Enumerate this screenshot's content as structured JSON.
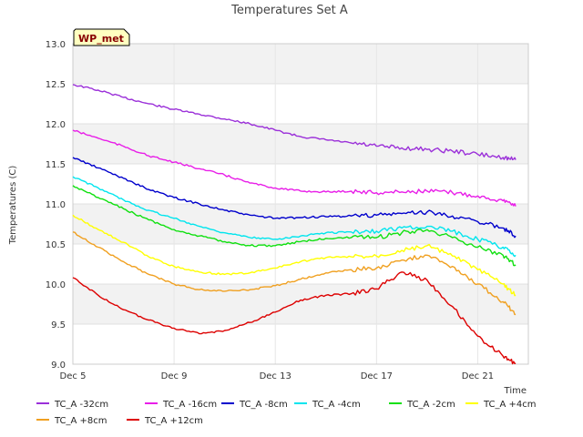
{
  "chart_data": {
    "type": "line",
    "title": "Temperatures Set A",
    "xlabel": "Time",
    "ylabel": "Temperatures (C)",
    "ylim": [
      9.0,
      13.0
    ],
    "xlim": [
      "2023-12-05",
      "2023-12-23"
    ],
    "yticks": [
      "9.0",
      "9.5",
      "10.0",
      "10.5",
      "11.0",
      "11.5",
      "12.0",
      "12.5",
      "13.0"
    ],
    "xticks": [
      {
        "label": "Dec 5",
        "date": "2023-12-05"
      },
      {
        "label": "Dec 9",
        "date": "2023-12-09"
      },
      {
        "label": "Dec 13",
        "date": "2023-12-13"
      },
      {
        "label": "Dec 17",
        "date": "2023-12-17"
      },
      {
        "label": "Dec 21",
        "date": "2023-12-21"
      }
    ],
    "grid": true,
    "legend_placement": "bottom",
    "badge": "WP_met",
    "series": [
      {
        "name": "TC_A -32cm",
        "color": "#9b30d9",
        "x": [
          "2023-12-05",
          "2023-12-06",
          "2023-12-07",
          "2023-12-08",
          "2023-12-09",
          "2023-12-10",
          "2023-12-11",
          "2023-12-12",
          "2023-12-13",
          "2023-12-14",
          "2023-12-15",
          "2023-12-16",
          "2023-12-17",
          "2023-12-18",
          "2023-12-19",
          "2023-12-20",
          "2023-12-21",
          "2023-12-22",
          "2023-12-22.5"
        ],
        "y": [
          12.49,
          12.42,
          12.33,
          12.25,
          12.18,
          12.12,
          12.06,
          12.0,
          11.92,
          11.84,
          11.8,
          11.76,
          11.72,
          11.7,
          11.68,
          11.66,
          11.62,
          11.58,
          11.55
        ]
      },
      {
        "name": "TC_A -16cm",
        "color": "#e81ee8",
        "x": [
          "2023-12-05",
          "2023-12-06",
          "2023-12-07",
          "2023-12-08",
          "2023-12-09",
          "2023-12-10",
          "2023-12-11",
          "2023-12-12",
          "2023-12-13",
          "2023-12-14",
          "2023-12-15",
          "2023-12-16",
          "2023-12-17",
          "2023-12-18",
          "2023-12-19",
          "2023-12-20",
          "2023-12-21",
          "2023-12-22",
          "2023-12-22.5"
        ],
        "y": [
          11.92,
          11.82,
          11.72,
          11.6,
          11.52,
          11.44,
          11.36,
          11.26,
          11.2,
          11.16,
          11.15,
          11.16,
          11.14,
          11.15,
          11.16,
          11.14,
          11.1,
          11.04,
          10.97
        ]
      },
      {
        "name": "TC_A -8cm",
        "color": "#0000cc",
        "x": [
          "2023-12-05",
          "2023-12-06",
          "2023-12-07",
          "2023-12-08",
          "2023-12-09",
          "2023-12-10",
          "2023-12-11",
          "2023-12-12",
          "2023-12-13",
          "2023-12-14",
          "2023-12-15",
          "2023-12-16",
          "2023-12-17",
          "2023-12-18",
          "2023-12-19",
          "2023-12-20",
          "2023-12-21",
          "2023-12-22",
          "2023-12-22.5"
        ],
        "y": [
          11.58,
          11.45,
          11.32,
          11.18,
          11.08,
          11.0,
          10.92,
          10.86,
          10.82,
          10.83,
          10.84,
          10.85,
          10.86,
          10.88,
          10.9,
          10.85,
          10.78,
          10.7,
          10.6
        ]
      },
      {
        "name": "TC_A -4cm",
        "color": "#00e5ee",
        "x": [
          "2023-12-05",
          "2023-12-06",
          "2023-12-07",
          "2023-12-08",
          "2023-12-09",
          "2023-12-10",
          "2023-12-11",
          "2023-12-12",
          "2023-12-13",
          "2023-12-14",
          "2023-12-15",
          "2023-12-16",
          "2023-12-17",
          "2023-12-18",
          "2023-12-19",
          "2023-12-20",
          "2023-12-21",
          "2023-12-22",
          "2023-12-22.5"
        ],
        "y": [
          11.34,
          11.2,
          11.05,
          10.92,
          10.82,
          10.72,
          10.64,
          10.58,
          10.56,
          10.6,
          10.64,
          10.65,
          10.66,
          10.7,
          10.72,
          10.66,
          10.56,
          10.46,
          10.36
        ]
      },
      {
        "name": "TC_A -2cm",
        "color": "#10e010",
        "x": [
          "2023-12-05",
          "2023-12-06",
          "2023-12-07",
          "2023-12-08",
          "2023-12-09",
          "2023-12-10",
          "2023-12-11",
          "2023-12-12",
          "2023-12-13",
          "2023-12-14",
          "2023-12-15",
          "2023-12-16",
          "2023-12-17",
          "2023-12-18",
          "2023-12-19",
          "2023-12-20",
          "2023-12-21",
          "2023-12-22",
          "2023-12-22.5"
        ],
        "y": [
          11.23,
          11.08,
          10.94,
          10.8,
          10.68,
          10.6,
          10.53,
          10.48,
          10.48,
          10.53,
          10.57,
          10.58,
          10.58,
          10.64,
          10.68,
          10.58,
          10.46,
          10.36,
          10.24
        ]
      },
      {
        "name": "TC_A +4cm",
        "color": "#ffff00",
        "x": [
          "2023-12-05",
          "2023-12-06",
          "2023-12-07",
          "2023-12-08",
          "2023-12-09",
          "2023-12-10",
          "2023-12-11",
          "2023-12-12",
          "2023-12-13",
          "2023-12-14",
          "2023-12-15",
          "2023-12-16",
          "2023-12-17",
          "2023-12-18",
          "2023-12-19",
          "2023-12-20",
          "2023-12-21",
          "2023-12-22",
          "2023-12-22.5"
        ],
        "y": [
          10.86,
          10.68,
          10.52,
          10.34,
          10.22,
          10.15,
          10.12,
          10.14,
          10.2,
          10.28,
          10.33,
          10.34,
          10.35,
          10.42,
          10.48,
          10.35,
          10.18,
          10.0,
          9.86
        ]
      },
      {
        "name": "TC_A +8cm",
        "color": "#f0a020",
        "x": [
          "2023-12-05",
          "2023-12-06",
          "2023-12-07",
          "2023-12-08",
          "2023-12-09",
          "2023-12-10",
          "2023-12-11",
          "2023-12-12",
          "2023-12-13",
          "2023-12-14",
          "2023-12-15",
          "2023-12-16",
          "2023-12-17",
          "2023-12-18",
          "2023-12-19",
          "2023-12-20",
          "2023-12-21",
          "2023-12-22",
          "2023-12-22.5"
        ],
        "y": [
          10.65,
          10.46,
          10.28,
          10.12,
          10.0,
          9.93,
          9.91,
          9.93,
          9.98,
          10.06,
          10.14,
          10.18,
          10.2,
          10.3,
          10.36,
          10.22,
          10.0,
          9.78,
          9.62
        ]
      },
      {
        "name": "TC_A +12cm",
        "color": "#dd0000",
        "x": [
          "2023-12-05",
          "2023-12-06",
          "2023-12-07",
          "2023-12-08",
          "2023-12-09",
          "2023-12-10",
          "2023-12-11",
          "2023-12-12",
          "2023-12-13",
          "2023-12-14",
          "2023-12-15",
          "2023-12-16",
          "2023-12-17",
          "2023-12-18",
          "2023-12-19",
          "2023-12-20",
          "2023-12-21",
          "2023-12-22",
          "2023-12-22.5"
        ],
        "y": [
          10.08,
          9.86,
          9.68,
          9.55,
          9.45,
          9.38,
          9.42,
          9.52,
          9.65,
          9.8,
          9.86,
          9.88,
          9.94,
          10.15,
          10.05,
          9.72,
          9.35,
          9.1,
          9.01
        ]
      }
    ]
  }
}
